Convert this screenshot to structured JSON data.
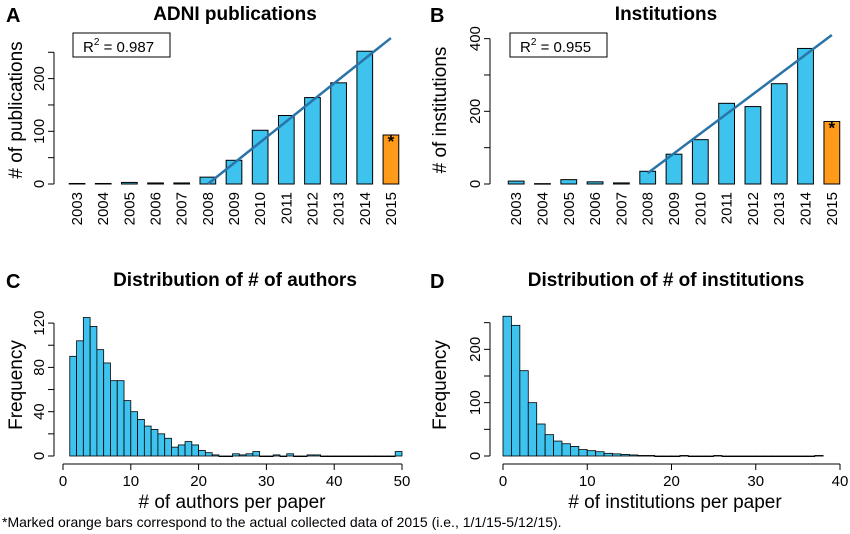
{
  "colors": {
    "bar": "#3ec3ee",
    "highlight": "#ff9a1a",
    "fit": "#2a74a8",
    "axis": "#000000"
  },
  "footnote": "*Marked orange bars correspond to the actual collected data of 2015 (i.e., 1/1/15-5/12/15).",
  "chart_data": [
    {
      "panel": "A",
      "type": "bar",
      "title": "ADNI publications",
      "ylabel": "# of publications",
      "xlabel": "",
      "categories": [
        "2003",
        "2004",
        "2005",
        "2006",
        "2007",
        "2008",
        "2009",
        "2010",
        "2011",
        "2012",
        "2013",
        "2014",
        "2015"
      ],
      "values": [
        1,
        1,
        3,
        2,
        2,
        13,
        45,
        102,
        130,
        164,
        192,
        252,
        93
      ],
      "highlight_index": 12,
      "highlight_marker": "*",
      "ylim": [
        0,
        260
      ],
      "yticks": [
        0,
        100,
        200
      ],
      "minor_yticks": [
        50,
        150,
        250
      ],
      "fit_line": {
        "from": [
          "2008",
          0
        ],
        "to": [
          "2015",
          277
        ]
      },
      "annotation": {
        "text": "R",
        "sup": "2",
        "rest": " = 0.987"
      }
    },
    {
      "panel": "B",
      "type": "bar",
      "title": "Institutions",
      "ylabel": "# of institutions",
      "xlabel": "",
      "categories": [
        "2003",
        "2004",
        "2005",
        "2006",
        "2007",
        "2008",
        "2009",
        "2010",
        "2011",
        "2012",
        "2013",
        "2014",
        "2015"
      ],
      "values": [
        8,
        1,
        12,
        6,
        3,
        35,
        82,
        122,
        222,
        213,
        276,
        373,
        172
      ],
      "highlight_index": 12,
      "highlight_marker": "*",
      "ylim": [
        0,
        410
      ],
      "yticks": [
        0,
        200,
        400
      ],
      "minor_yticks": [
        100,
        300
      ],
      "fit_line": {
        "from": [
          "2008",
          30
        ],
        "to": [
          "2015",
          410
        ]
      },
      "annotation": {
        "text": "R",
        "sup": "2",
        "rest": " = 0.955"
      }
    },
    {
      "panel": "C",
      "type": "bar",
      "title": "Distribution of # of authors",
      "ylabel": "Frequency",
      "xlabel": "# of authors per paper",
      "bin_start": 1,
      "bin_width": 1,
      "values": [
        90,
        104,
        125,
        117,
        96,
        84,
        68,
        68,
        50,
        40,
        33,
        27,
        24,
        20,
        16,
        8,
        10,
        13,
        10,
        5,
        3,
        1,
        0,
        0,
        2,
        1,
        2,
        4,
        0,
        0,
        1,
        0,
        2,
        0,
        0,
        1,
        1,
        0,
        0,
        0,
        0,
        0,
        0,
        0,
        0,
        0,
        0,
        0,
        4
      ],
      "ylim": [
        0,
        130
      ],
      "xlim": [
        0,
        50
      ],
      "yticks": [
        0,
        40,
        80,
        120
      ],
      "minor_yticks": [
        20,
        60,
        100
      ],
      "xticks": [
        0,
        10,
        20,
        30,
        40,
        50
      ]
    },
    {
      "panel": "D",
      "type": "bar",
      "title": "Distribution of # of institutions",
      "ylabel": "Frequency",
      "xlabel": "# of institutions per paper",
      "bin_start": 0,
      "bin_width": 1,
      "values": [
        262,
        245,
        160,
        100,
        60,
        40,
        28,
        23,
        18,
        12,
        10,
        8,
        5,
        4,
        3,
        2,
        1,
        1,
        0,
        0,
        0,
        1,
        0,
        0,
        0,
        1,
        0,
        0,
        0,
        0,
        0,
        0,
        0,
        0,
        0,
        0,
        0,
        1
      ],
      "ylim": [
        0,
        270
      ],
      "xlim": [
        0,
        40
      ],
      "yticks": [
        0,
        100,
        200
      ],
      "minor_yticks": [
        50,
        150,
        250
      ],
      "xticks": [
        0,
        10,
        20,
        30,
        40
      ]
    }
  ]
}
